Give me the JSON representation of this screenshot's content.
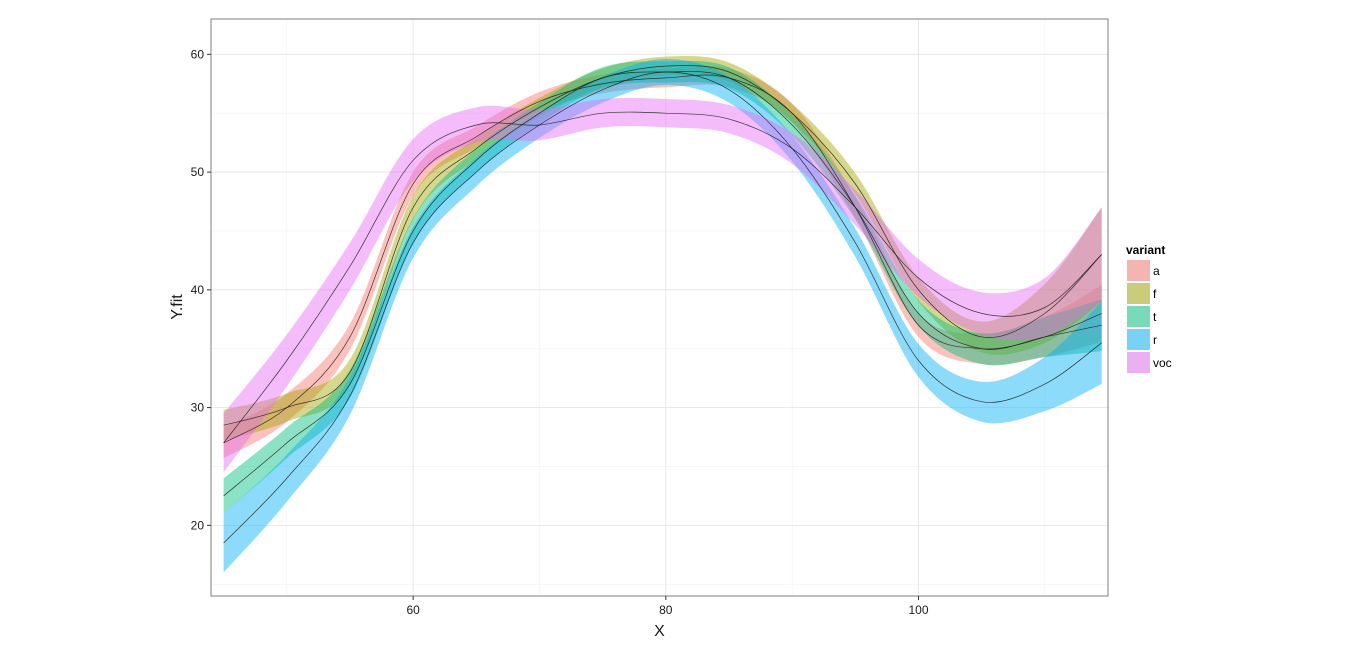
{
  "chart_data": {
    "type": "line",
    "xlabel": "X",
    "ylabel": "Y.fit",
    "xlim": [
      44,
      115
    ],
    "ylim": [
      14,
      63
    ],
    "xticks": [
      60,
      80,
      100
    ],
    "yticks": [
      20,
      30,
      40,
      50,
      60
    ],
    "grid": true,
    "legend": {
      "title": "variant",
      "position": "right"
    },
    "series": [
      {
        "name": "a",
        "color": "#F8766D",
        "x": [
          45,
          50,
          55,
          60,
          65,
          70,
          75,
          80,
          85,
          90,
          95,
          100,
          105,
          110,
          114.5
        ],
        "y": [
          27,
          30,
          36,
          49,
          53,
          56,
          57.5,
          58,
          58,
          55,
          47,
          37,
          35,
          36,
          38
        ],
        "band": [
          1.3,
          1.2,
          1.1,
          1.0,
          0.9,
          0.8,
          0.8,
          0.8,
          0.8,
          0.8,
          0.9,
          1.0,
          1.3,
          1.7,
          2.4
        ]
      },
      {
        "name": "f",
        "color": "#A3A500",
        "x": [
          45,
          50,
          55,
          60,
          65,
          70,
          75,
          80,
          85,
          90,
          95,
          100,
          105,
          110,
          114.5
        ],
        "y": [
          28.5,
          30,
          33,
          47,
          52,
          55.5,
          58,
          59,
          58.5,
          55,
          49,
          40,
          36,
          38,
          43
        ],
        "band": [
          1.3,
          1.2,
          1.1,
          1.0,
          0.9,
          0.8,
          0.8,
          0.8,
          0.8,
          0.8,
          0.9,
          1.0,
          1.3,
          2.5,
          4.0
        ]
      },
      {
        "name": "t",
        "color": "#00BF7D",
        "x": [
          45,
          50,
          55,
          60,
          65,
          70,
          75,
          80,
          85,
          90,
          95,
          100,
          105,
          110,
          114.5
        ],
        "y": [
          22.5,
          27,
          32,
          45,
          51,
          55,
          58,
          58.5,
          58,
          54,
          47,
          38,
          35,
          36,
          37
        ],
        "band": [
          1.5,
          1.3,
          1.2,
          1.1,
          1.0,
          0.9,
          0.9,
          0.9,
          0.9,
          0.9,
          1.0,
          1.1,
          1.3,
          1.7,
          2.2
        ]
      },
      {
        "name": "r",
        "color": "#00B0F6",
        "x": [
          45,
          50,
          55,
          60,
          65,
          70,
          75,
          80,
          85,
          90,
          95,
          100,
          105,
          110,
          114.5
        ],
        "y": [
          18.5,
          24,
          31,
          44,
          50,
          54,
          57,
          58.5,
          57,
          52,
          44,
          34,
          30.5,
          32,
          35.5
        ],
        "band": [
          2.5,
          2.0,
          1.6,
          1.3,
          1.2,
          1.1,
          1.1,
          1.1,
          1.1,
          1.1,
          1.2,
          1.4,
          1.7,
          2.3,
          3.5
        ]
      },
      {
        "name": "voc",
        "color": "#E76BF3",
        "x": [
          45,
          50,
          55,
          60,
          65,
          70,
          75,
          80,
          85,
          90,
          95,
          100,
          105,
          110,
          114.5
        ],
        "y": [
          27,
          34,
          42,
          51,
          54,
          54,
          55,
          55,
          54.5,
          52,
          47,
          41,
          38,
          38.5,
          43
        ],
        "band": [
          2.5,
          2.2,
          2.0,
          1.8,
          1.5,
          1.3,
          1.2,
          1.2,
          1.2,
          1.3,
          1.5,
          1.6,
          1.8,
          2.5,
          4.0
        ]
      }
    ]
  }
}
